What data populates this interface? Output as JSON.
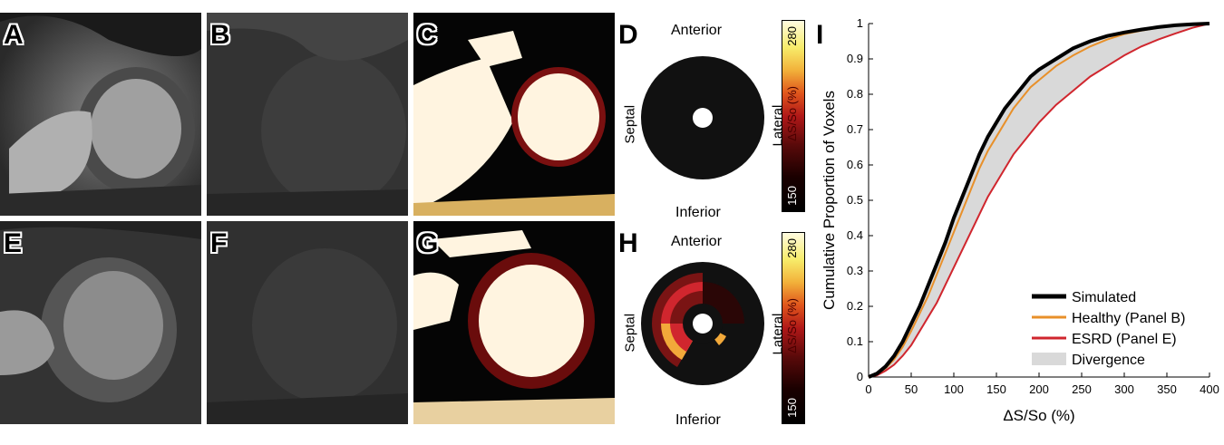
{
  "panels": {
    "A": "A",
    "B": "B",
    "C": "C",
    "D": "D",
    "E": "E",
    "F": "F",
    "G": "G",
    "H": "H",
    "I": "I"
  },
  "bullseye_labels": {
    "anterior": "Anterior",
    "inferior": "Inferior",
    "septal": "Septal",
    "lateral": "Lateral"
  },
  "colorbar": {
    "max_label": "280",
    "min_label": "150",
    "unit_label": "ΔS/So (%)"
  },
  "chart_data": {
    "type": "line",
    "xlabel": "ΔS/So (%)",
    "ylabel": "Cumulative Proportion of Voxels",
    "xlim": [
      0,
      400
    ],
    "ylim": [
      0,
      1
    ],
    "xticks": [
      "0",
      "50",
      "100",
      "150",
      "200",
      "250",
      "300",
      "350",
      "400"
    ],
    "yticks": [
      "0",
      "0.1",
      "0.2",
      "0.3",
      "0.4",
      "0.5",
      "0.6",
      "0.7",
      "0.8",
      "0.9",
      "1"
    ],
    "legend_position": "bottom-right",
    "series": [
      {
        "name": "Simulated",
        "color": "#000000",
        "x": [
          0,
          10,
          20,
          30,
          40,
          50,
          60,
          70,
          80,
          90,
          100,
          110,
          120,
          130,
          140,
          150,
          160,
          170,
          180,
          190,
          200,
          220,
          240,
          260,
          280,
          300,
          320,
          340,
          360,
          380,
          400
        ],
        "y": [
          0,
          0.01,
          0.03,
          0.06,
          0.1,
          0.15,
          0.2,
          0.26,
          0.32,
          0.38,
          0.45,
          0.51,
          0.57,
          0.63,
          0.68,
          0.72,
          0.76,
          0.79,
          0.82,
          0.85,
          0.87,
          0.9,
          0.93,
          0.95,
          0.965,
          0.975,
          0.983,
          0.99,
          0.995,
          0.998,
          1.0
        ]
      },
      {
        "name": "Healthy (Panel B)",
        "color": "#e8902a",
        "x": [
          0,
          10,
          20,
          30,
          40,
          50,
          60,
          70,
          80,
          90,
          100,
          110,
          120,
          130,
          140,
          150,
          160,
          170,
          180,
          190,
          200,
          220,
          240,
          260,
          280,
          300,
          320,
          340,
          360,
          380,
          400
        ],
        "y": [
          0,
          0.008,
          0.025,
          0.05,
          0.085,
          0.13,
          0.18,
          0.23,
          0.29,
          0.35,
          0.41,
          0.47,
          0.53,
          0.59,
          0.64,
          0.68,
          0.72,
          0.76,
          0.79,
          0.82,
          0.84,
          0.88,
          0.91,
          0.935,
          0.955,
          0.97,
          0.98,
          0.988,
          0.994,
          0.998,
          1.0
        ]
      },
      {
        "name": "ESRD (Panel E)",
        "color": "#d0262e",
        "x": [
          0,
          10,
          20,
          30,
          40,
          50,
          60,
          70,
          80,
          90,
          100,
          110,
          120,
          130,
          140,
          150,
          160,
          170,
          180,
          190,
          200,
          220,
          240,
          260,
          280,
          300,
          320,
          340,
          360,
          380,
          400
        ],
        "y": [
          0,
          0.005,
          0.018,
          0.035,
          0.06,
          0.09,
          0.13,
          0.17,
          0.21,
          0.26,
          0.31,
          0.36,
          0.41,
          0.46,
          0.51,
          0.55,
          0.59,
          0.63,
          0.66,
          0.69,
          0.72,
          0.77,
          0.81,
          0.85,
          0.88,
          0.91,
          0.935,
          0.955,
          0.972,
          0.988,
          1.0
        ]
      }
    ],
    "shaded_region": {
      "name": "Divergence",
      "color": "#d9d9d9"
    }
  }
}
